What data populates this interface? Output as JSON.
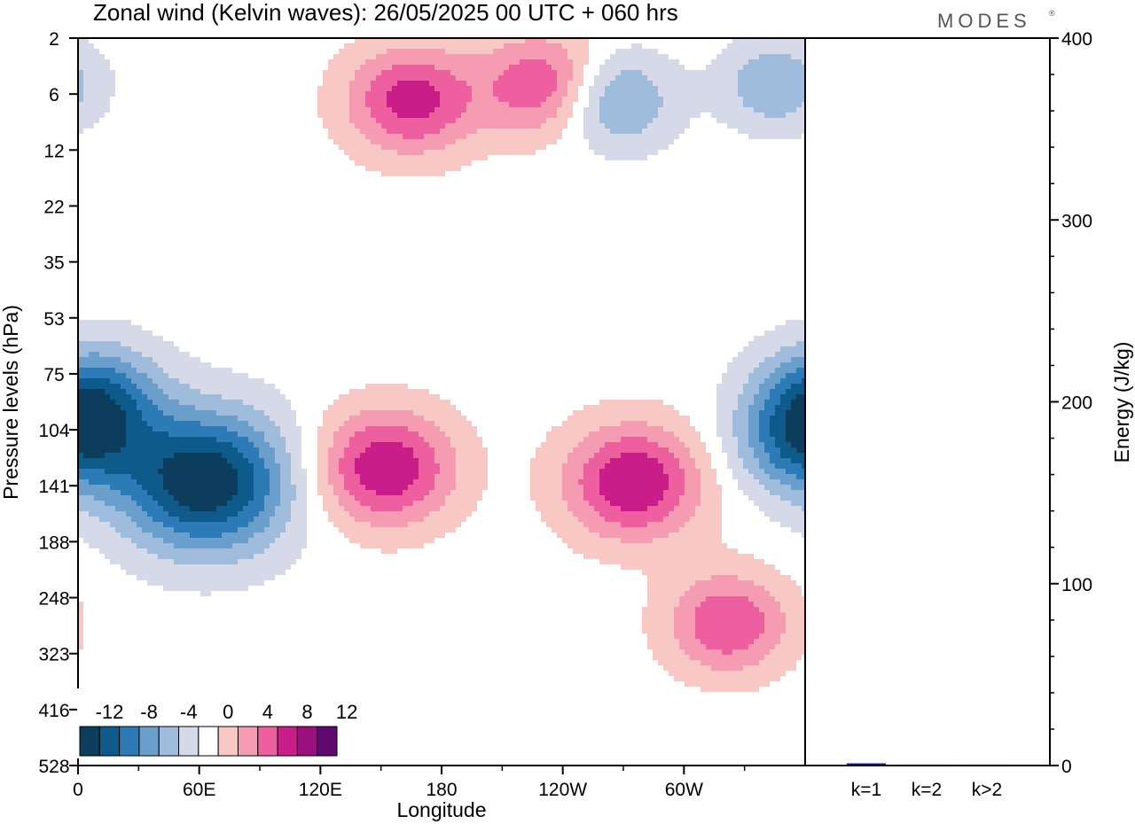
{
  "chart_data": [
    {
      "type": "heatmap",
      "title": "Zonal wind (Kelvin waves):  26/05/2025  00 UTC  + 060 hrs",
      "xlabel": "Longitude",
      "ylabel": "Pressure levels (hPa)",
      "x_ticks": [
        "0",
        "60E",
        "120E",
        "180",
        "120W",
        "60W"
      ],
      "y_ticks": [
        "2",
        "6",
        "12",
        "22",
        "35",
        "53",
        "75",
        "104",
        "141",
        "188",
        "248",
        "323",
        "416",
        "528"
      ],
      "colorbar": {
        "labels": [
          "-12",
          "-8",
          "-4",
          "0",
          "4",
          "8",
          "12"
        ],
        "colors": [
          "#0d3d5c",
          "#0e5a8a",
          "#2c7bb6",
          "#6a9fcb",
          "#a0bcdc",
          "#d6dae8",
          "#ffffff",
          "#f8c9c4",
          "#f59cb3",
          "#ee5fa0",
          "#c91e8a",
          "#9a0f7e",
          "#5e0a6e"
        ]
      },
      "features": [
        {
          "sign": -1,
          "lon": 63,
          "p": 138,
          "strength": 13
        },
        {
          "sign": -1,
          "lon": 8,
          "p": 85,
          "strength": 8
        },
        {
          "sign": -1,
          "lon": 358,
          "p": 112,
          "strength": 8
        },
        {
          "sign": -1,
          "lon": 266,
          "p": 6.5,
          "strength": 6
        },
        {
          "sign": -1,
          "lon": 345,
          "p": 5,
          "strength": 5
        },
        {
          "sign": 1,
          "lon": 152,
          "p": 128,
          "strength": 9
        },
        {
          "sign": 1,
          "lon": 275,
          "p": 138,
          "strength": 9
        },
        {
          "sign": 1,
          "lon": 322,
          "p": 280,
          "strength": 7
        },
        {
          "sign": 1,
          "lon": 165,
          "p": 6.5,
          "strength": 8
        },
        {
          "sign": 1,
          "lon": 230,
          "p": 5,
          "strength": 7
        }
      ]
    },
    {
      "type": "bar",
      "ylabel": "Energy (J/kg)",
      "categories": [
        "k=1",
        "k=2",
        "k>2"
      ],
      "values": [
        1.2,
        0.5,
        0.5
      ],
      "ylim": [
        0,
        400
      ],
      "y_ticks": [
        "0",
        "100",
        "200",
        "300",
        "400"
      ],
      "bar_color": "#1a1a7a"
    }
  ],
  "brand": "MODES"
}
